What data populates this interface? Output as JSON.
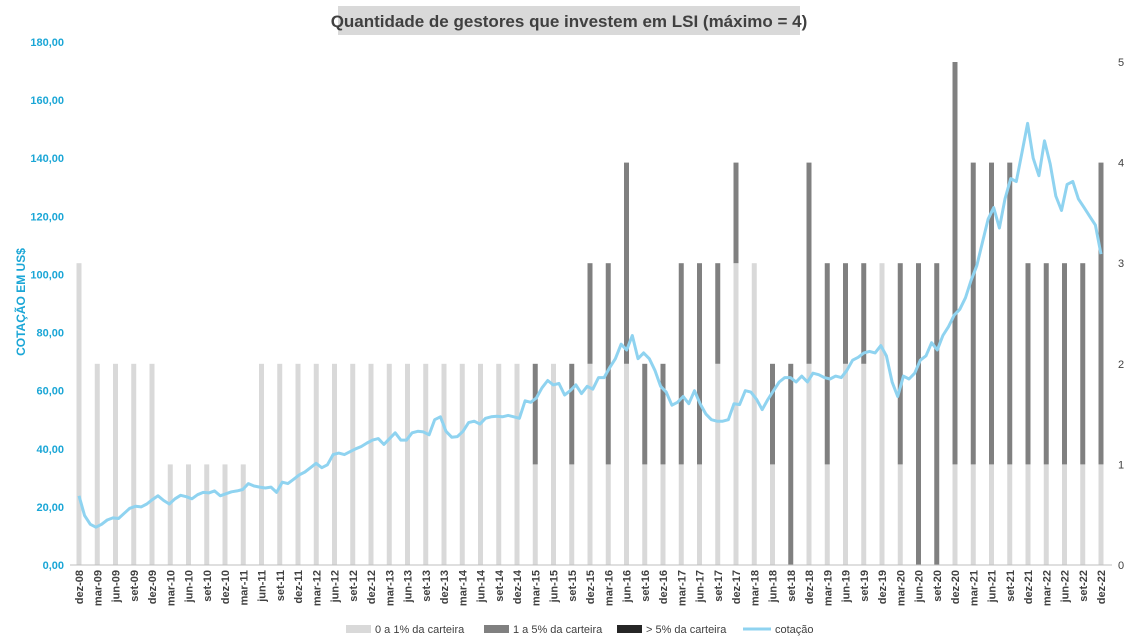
{
  "chart_data": {
    "type": "bar",
    "title": "Quantidade de gestores que investem em LSI (máximo = 4)",
    "ylabel_left": "COTAÇÃO EM US$",
    "ylim_left": [
      0,
      180
    ],
    "yticks_left": [
      "0,00",
      "20,00",
      "40,00",
      "60,00",
      "80,00",
      "100,00",
      "120,00",
      "140,00",
      "160,00",
      "180,00"
    ],
    "ylim_right": [
      0,
      5
    ],
    "yticks_right": [
      "0",
      "1",
      "2",
      "3",
      "4",
      "5"
    ],
    "grid": false,
    "legend_position": "bottom",
    "colors": {
      "light": "#d9d9d9",
      "mid": "#808080",
      "dark": "#262626",
      "line": "#8fd3f0",
      "axis_left": "#1aa6d6"
    },
    "x_tick_labels": [
      "dez-08",
      "mar-09",
      "jun-09",
      "set-09",
      "dez-09",
      "mar-10",
      "jun-10",
      "set-10",
      "dez-10",
      "mar-11",
      "jun-11",
      "set-11",
      "dez-11",
      "mar-12",
      "jun-12",
      "set-12",
      "dez-12",
      "mar-13",
      "jun-13",
      "set-13",
      "dez-13",
      "mar-14",
      "jun-14",
      "set-14",
      "dez-14",
      "mar-15",
      "jun-15",
      "set-15",
      "dez-15",
      "mar-16",
      "jun-16",
      "set-16",
      "dez-16",
      "mar-17",
      "jun-17",
      "set-17",
      "dez-17",
      "mar-18",
      "jun-18",
      "set-18",
      "dez-18",
      "mar-19",
      "jun-19",
      "set-19",
      "dez-19",
      "mar-20",
      "jun-20",
      "set-20",
      "dez-20",
      "mar-21",
      "jun-21",
      "set-21",
      "dez-21",
      "mar-22",
      "jun-22",
      "set-22",
      "dez-22"
    ],
    "series": [
      {
        "name": "0 a 1% da carteira",
        "axis": "right",
        "values": [
          3,
          2,
          2,
          2,
          2,
          1,
          1,
          1,
          1,
          1,
          2,
          2,
          2,
          2,
          2,
          2,
          2,
          2,
          2,
          2,
          2,
          2,
          2,
          2,
          2,
          1,
          2,
          1,
          2,
          1,
          2,
          1,
          1,
          1,
          1,
          2,
          3,
          3,
          1,
          0,
          2,
          1,
          2,
          2,
          3,
          1,
          0,
          0,
          1,
          1,
          1,
          1,
          1,
          1,
          1,
          1,
          1
        ]
      },
      {
        "name": "1 a 5% da carteira",
        "axis": "right",
        "values": [
          0,
          0,
          0,
          0,
          0,
          0,
          0,
          0,
          0,
          0,
          0,
          0,
          0,
          0,
          0,
          0,
          0,
          0,
          0,
          0,
          0,
          0,
          0,
          0,
          0,
          1,
          0,
          1,
          1,
          2,
          2,
          1,
          1,
          2,
          2,
          1,
          1,
          0,
          1,
          2,
          2,
          2,
          1,
          1,
          0,
          2,
          3,
          3,
          4,
          3,
          3,
          3,
          2,
          2,
          2,
          2,
          3
        ]
      },
      {
        "name": "> 5% da carteira",
        "axis": "right",
        "values": [
          0,
          0,
          0,
          0,
          0,
          0,
          0,
          0,
          0,
          0,
          0,
          0,
          0,
          0,
          0,
          0,
          0,
          0,
          0,
          0,
          0,
          0,
          0,
          0,
          0,
          0,
          0,
          0,
          0,
          0,
          0,
          0,
          0,
          0,
          0,
          0,
          0,
          0,
          0,
          0,
          0,
          0,
          0,
          0,
          0,
          0,
          0,
          0,
          0,
          0,
          0,
          0,
          0,
          0,
          0,
          0,
          0
        ]
      },
      {
        "name": "cotação",
        "axis": "left",
        "type": "line",
        "values": [
          23.8,
          17,
          14,
          13,
          14,
          15.5,
          16.2,
          16,
          17.8,
          19.5,
          20.2,
          20,
          21,
          22.5,
          23.8,
          22.2,
          21,
          22.8,
          24,
          23.5,
          22.8,
          24.2,
          25,
          24.8,
          25.5,
          23.8,
          24.5,
          25.2,
          25.5,
          26,
          28,
          27.2,
          26.8,
          26.5,
          26.8,
          25,
          28.5,
          28,
          29.5,
          31,
          32,
          33.5,
          35,
          33.5,
          34.5,
          38,
          38.5,
          38,
          39,
          40,
          40.8,
          42,
          43,
          43.5,
          41.5,
          43.5,
          45.5,
          43,
          43,
          45.5,
          46,
          45.8,
          44.8,
          50,
          51,
          46,
          44,
          44.2,
          46,
          49,
          49.5,
          48.5,
          50.5,
          51,
          51.2,
          51,
          51.5,
          51,
          50.5,
          56.5,
          56,
          57.5,
          61,
          63.5,
          62,
          62.5,
          58.5,
          60,
          62,
          59,
          61.5,
          60.5,
          64.5,
          64.5,
          68,
          71,
          76,
          74,
          79,
          71,
          73,
          71,
          67,
          61.5,
          59.5,
          55,
          56,
          58,
          55.5,
          60,
          55.5,
          52,
          50,
          49.5,
          49.5,
          50,
          55.5,
          55.2,
          60,
          59.5,
          57,
          53.5,
          57,
          60,
          63,
          64.5,
          64.5,
          63,
          65,
          63,
          66,
          65.5,
          64.5,
          64,
          65,
          64.5,
          67,
          70.5,
          71.5,
          73,
          73.5,
          73,
          75.5,
          72,
          63,
          58,
          65,
          64,
          66,
          70.5,
          72,
          76.5,
          74,
          79,
          82,
          86,
          88,
          92,
          98,
          103,
          111,
          119,
          123,
          116,
          126,
          133,
          132,
          142,
          152,
          140,
          134,
          146,
          138,
          127,
          122,
          131,
          132,
          126,
          123,
          120,
          117,
          107
        ]
      }
    ]
  }
}
